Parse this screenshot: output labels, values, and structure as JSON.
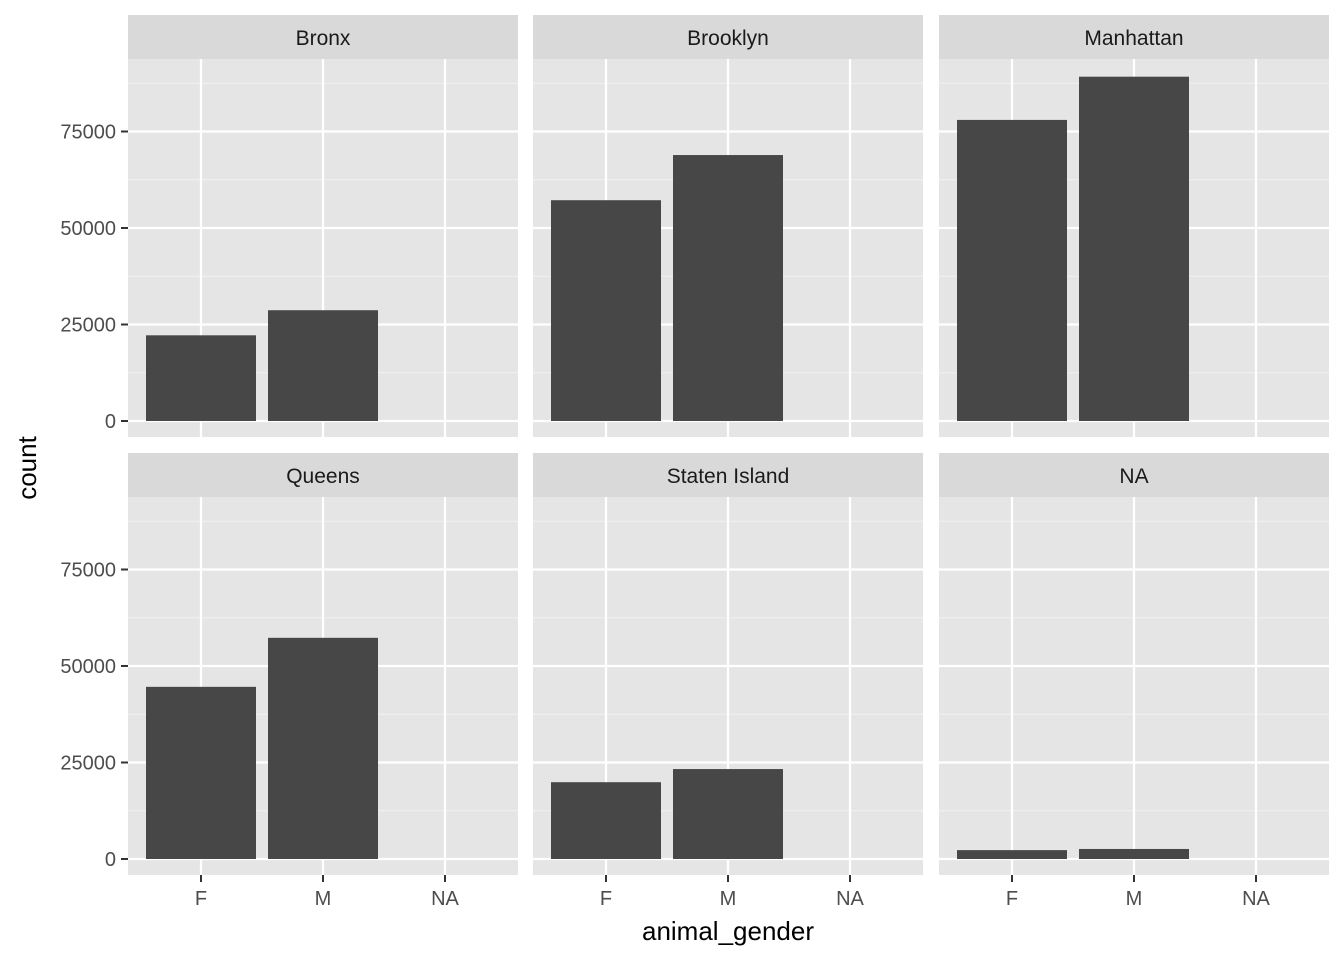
{
  "chart_data": {
    "type": "bar",
    "xlabel": "animal_gender",
    "ylabel": "count",
    "ylim": [
      0,
      98000
    ],
    "yticks": [
      0,
      25000,
      50000,
      75000
    ],
    "ytick_labels": [
      "0",
      "25000",
      "50000",
      "75000"
    ],
    "categories": [
      "F",
      "M",
      "NA"
    ],
    "grid": true,
    "facets": [
      {
        "name": "Bronx",
        "values": [
          22200,
          28700,
          0
        ]
      },
      {
        "name": "Brooklyn",
        "values": [
          57200,
          68900,
          0
        ]
      },
      {
        "name": "Manhattan",
        "values": [
          78000,
          89200,
          0
        ]
      },
      {
        "name": "Queens",
        "values": [
          44600,
          57300,
          0
        ]
      },
      {
        "name": "Staten Island",
        "values": [
          19900,
          23300,
          0
        ]
      },
      {
        "name": "NA",
        "values": [
          2300,
          2600,
          0
        ]
      }
    ],
    "bar_color": "#474747",
    "panel_color": "#e5e5e5",
    "strip_color": "#d9d9d9"
  }
}
